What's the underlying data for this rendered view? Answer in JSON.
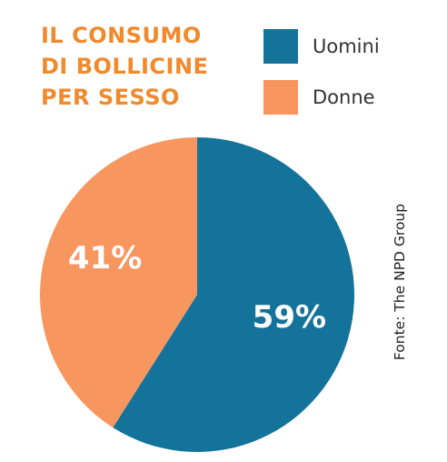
{
  "title_lines": [
    "IL CONSUMO",
    "DI BOLLICINE",
    "PER SESSO"
  ],
  "source": "Fonte: The NPD Group",
  "colors": {
    "title": "#f08a2c",
    "uomini": "#14739a",
    "donne": "#f7965f"
  },
  "chart_data": {
    "type": "pie",
    "title": "IL CONSUMO DI BOLLICINE PER SESSO",
    "legend": "top-right",
    "slices": [
      {
        "name": "Uomini",
        "value": 59,
        "label": "59%",
        "color": "#14739a"
      },
      {
        "name": "Donne",
        "value": 41,
        "label": "41%",
        "color": "#f7965f"
      }
    ]
  }
}
